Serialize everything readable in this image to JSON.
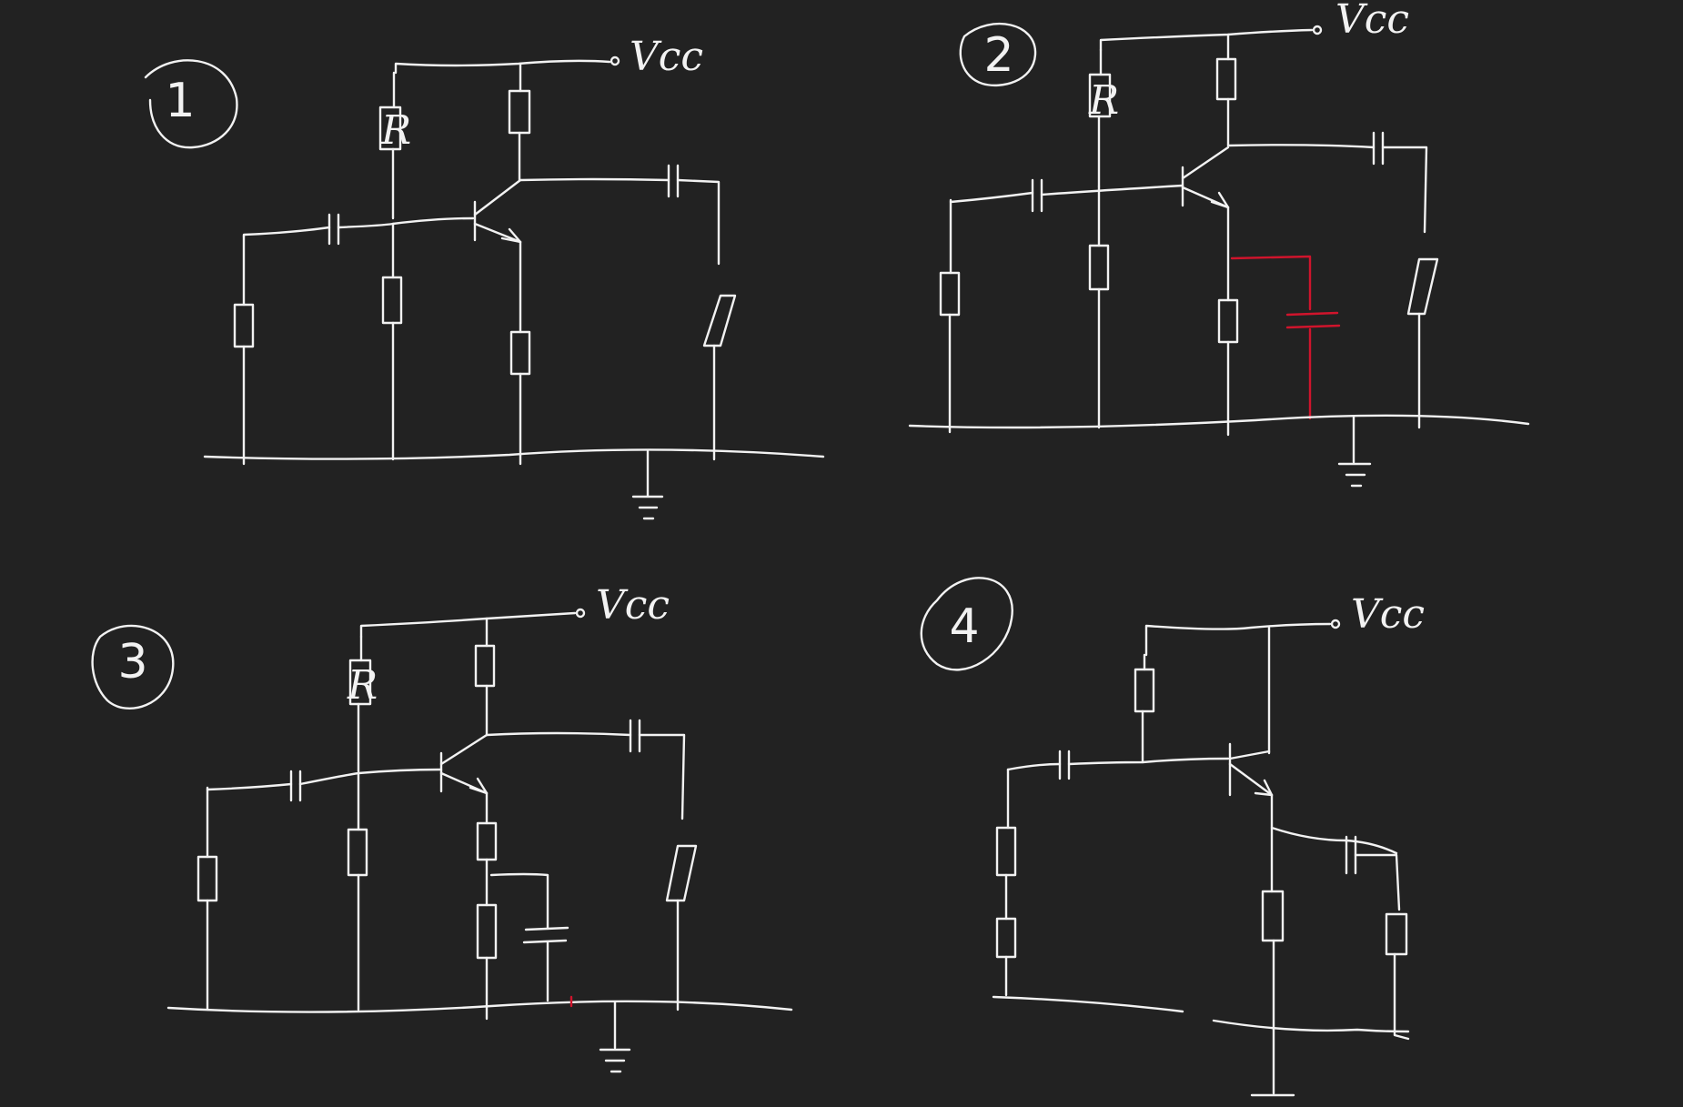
{
  "canvas": {
    "background": "#222222",
    "ink": "#f2f2f2",
    "highlight": "#d0142c"
  },
  "circuits": [
    {
      "number": "1",
      "supply": "Vcc",
      "resistor_label": "R"
    },
    {
      "number": "2",
      "supply": "Vcc",
      "resistor_label": "R"
    },
    {
      "number": "3",
      "supply": "Vcc",
      "resistor_label": "R"
    },
    {
      "number": "4",
      "supply": "Vcc"
    }
  ]
}
